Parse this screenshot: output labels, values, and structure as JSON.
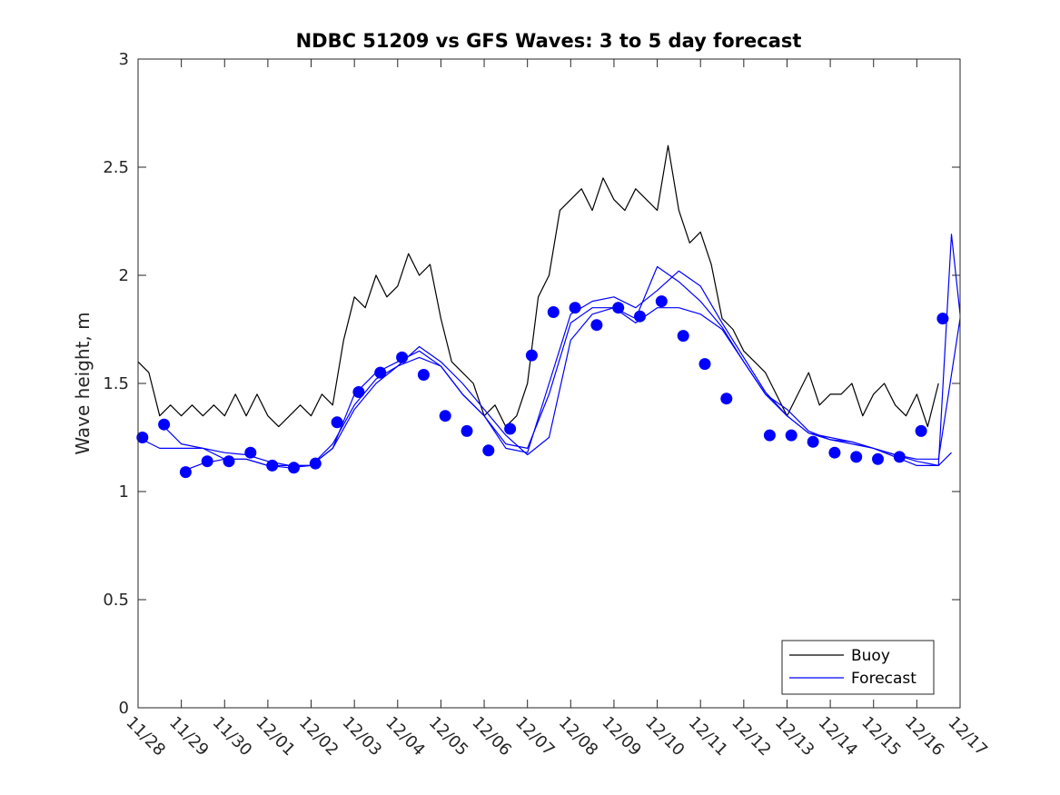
{
  "chart_data": {
    "type": "line",
    "title": "NDBC 51209 vs GFS Waves: 3 to 5 day forecast",
    "xlabel": "",
    "ylabel": "Wave height, m",
    "ylim": [
      0,
      3
    ],
    "xlim": [
      0,
      19
    ],
    "x_tick_labels": [
      "11/28",
      "11/29",
      "11/30",
      "12/01",
      "12/02",
      "12/03",
      "12/04",
      "12/05",
      "12/06",
      "12/07",
      "12/08",
      "12/09",
      "12/10",
      "12/11",
      "12/12",
      "12/13",
      "12/14",
      "12/15",
      "12/16",
      "12/17"
    ],
    "y_tick_labels": [
      "0",
      "0.5",
      "1",
      "1.5",
      "2",
      "2.5",
      "3"
    ],
    "y_ticks": [
      0,
      0.5,
      1,
      1.5,
      2,
      2.5,
      3
    ],
    "legend": {
      "position": "bottom-right",
      "entries": [
        "Buoy",
        "Forecast"
      ]
    },
    "colors": {
      "buoy": "#000000",
      "forecast": "#0000ff",
      "markers": "#0000ff"
    },
    "series": [
      {
        "name": "Buoy",
        "x": [
          0.0,
          0.25,
          0.5,
          0.75,
          1.0,
          1.25,
          1.5,
          1.75,
          2.0,
          2.25,
          2.5,
          2.75,
          3.0,
          3.25,
          3.5,
          3.75,
          4.0,
          4.25,
          4.5,
          4.75,
          5.0,
          5.25,
          5.5,
          5.75,
          6.0,
          6.25,
          6.5,
          6.75,
          7.0,
          7.25,
          7.5,
          7.75,
          8.0,
          8.25,
          8.5,
          8.75,
          9.0,
          9.25,
          9.5,
          9.75,
          10.0,
          10.25,
          10.5,
          10.75,
          11.0,
          11.25,
          11.5,
          11.75,
          12.0,
          12.25,
          12.5,
          12.75,
          13.0,
          13.25,
          13.5,
          13.75,
          14.0,
          14.25,
          14.5,
          14.75,
          15.0,
          15.25,
          15.5,
          15.75,
          16.0,
          16.25,
          16.5,
          16.75,
          17.0,
          17.25,
          17.5,
          17.75,
          18.0,
          18.25,
          18.5
        ],
        "values": [
          1.6,
          1.55,
          1.35,
          1.4,
          1.35,
          1.4,
          1.35,
          1.4,
          1.35,
          1.45,
          1.35,
          1.45,
          1.35,
          1.3,
          1.35,
          1.4,
          1.35,
          1.45,
          1.4,
          1.7,
          1.9,
          1.85,
          2.0,
          1.9,
          1.95,
          2.1,
          2.0,
          2.05,
          1.8,
          1.6,
          1.55,
          1.5,
          1.35,
          1.4,
          1.3,
          1.35,
          1.5,
          1.9,
          2.0,
          2.3,
          2.35,
          2.4,
          2.3,
          2.45,
          2.35,
          2.3,
          2.4,
          2.35,
          2.3,
          2.6,
          2.3,
          2.15,
          2.2,
          2.05,
          1.8,
          1.75,
          1.65,
          1.6,
          1.55,
          1.45,
          1.35,
          1.45,
          1.55,
          1.4,
          1.45,
          1.45,
          1.5,
          1.35,
          1.45,
          1.5,
          1.4,
          1.35,
          1.45,
          1.3,
          1.5
        ]
      },
      {
        "name": "Forecast",
        "x": [
          0.0,
          0.5,
          1.0,
          1.5,
          2.0,
          2.5,
          3.0,
          3.5,
          4.0,
          4.5,
          5.0,
          5.5,
          6.0,
          6.5,
          7.0,
          7.5,
          8.0,
          8.5,
          9.0,
          9.5,
          10.0,
          10.5,
          11.0,
          11.5,
          12.0,
          12.5,
          13.0,
          13.5,
          14.0,
          14.5,
          15.0,
          15.5,
          16.0,
          16.5,
          17.0,
          17.5,
          18.0,
          18.5,
          19.0
        ],
        "values": [
          1.25,
          1.2,
          1.2,
          1.2,
          1.15,
          1.15,
          1.12,
          1.12,
          1.12,
          1.2,
          1.38,
          1.5,
          1.58,
          1.62,
          1.58,
          1.45,
          1.35,
          1.22,
          1.2,
          1.45,
          1.78,
          1.85,
          1.85,
          1.78,
          1.85,
          1.85,
          1.82,
          1.75,
          1.6,
          1.45,
          1.35,
          1.27,
          1.25,
          1.23,
          1.2,
          1.17,
          1.15,
          1.15,
          1.8
        ]
      },
      {
        "name": "Forecast",
        "x": [
          0.6,
          1.0,
          1.5,
          2.0,
          2.5,
          3.0,
          3.5,
          4.0,
          4.5,
          5.0,
          5.5,
          6.0,
          6.5,
          7.0,
          7.5,
          8.0,
          8.5,
          9.0,
          9.5,
          10.0,
          10.5,
          11.0,
          11.5,
          12.0,
          12.5,
          13.0,
          13.5,
          14.0,
          14.5,
          15.0,
          15.5,
          16.0,
          16.5,
          17.0,
          17.5,
          18.0,
          18.5,
          18.8
        ],
        "values": [
          1.3,
          1.22,
          1.2,
          1.18,
          1.17,
          1.14,
          1.12,
          1.12,
          1.2,
          1.45,
          1.55,
          1.6,
          1.65,
          1.58,
          1.45,
          1.35,
          1.2,
          1.18,
          1.5,
          1.82,
          1.88,
          1.9,
          1.85,
          1.93,
          2.02,
          1.95,
          1.78,
          1.62,
          1.46,
          1.35,
          1.27,
          1.24,
          1.22,
          1.2,
          1.17,
          1.14,
          1.12,
          1.18
        ]
      },
      {
        "name": "Forecast",
        "x": [
          1.1,
          1.5,
          2.0,
          2.5,
          3.0,
          3.5,
          4.0,
          4.5,
          5.0,
          5.5,
          6.0,
          6.5,
          7.0,
          7.5,
          8.0,
          8.5,
          9.0,
          9.5,
          10.0,
          10.5,
          11.0,
          11.5,
          12.0,
          12.5,
          13.0,
          13.5,
          14.0,
          14.5,
          15.0,
          15.5,
          16.0,
          16.5,
          17.0,
          17.5,
          18.0,
          18.5,
          18.8,
          19.0
        ],
        "values": [
          1.1,
          1.13,
          1.15,
          1.15,
          1.12,
          1.11,
          1.12,
          1.22,
          1.4,
          1.52,
          1.58,
          1.67,
          1.6,
          1.5,
          1.38,
          1.26,
          1.17,
          1.25,
          1.7,
          1.82,
          1.85,
          1.8,
          2.04,
          1.97,
          1.88,
          1.76,
          1.6,
          1.45,
          1.38,
          1.28,
          1.24,
          1.23,
          1.2,
          1.16,
          1.12,
          1.12,
          2.19,
          1.82
        ]
      }
    ],
    "markers": {
      "name": "Forecast points",
      "x": [
        0.1,
        0.6,
        1.1,
        1.6,
        2.1,
        2.6,
        3.1,
        3.6,
        4.1,
        4.6,
        5.1,
        5.6,
        6.1,
        6.6,
        7.1,
        7.6,
        8.1,
        8.6,
        9.1,
        9.6,
        10.1,
        10.6,
        11.1,
        11.6,
        12.1,
        12.6,
        13.1,
        13.6,
        14.6,
        15.1,
        15.6,
        16.1,
        16.6,
        17.1,
        17.6,
        18.1,
        18.6
      ],
      "values": [
        1.25,
        1.31,
        1.09,
        1.14,
        1.14,
        1.18,
        1.12,
        1.11,
        1.13,
        1.32,
        1.46,
        1.55,
        1.62,
        1.54,
        1.35,
        1.28,
        1.19,
        1.29,
        1.63,
        1.83,
        1.85,
        1.77,
        1.85,
        1.81,
        1.88,
        1.72,
        1.59,
        1.43,
        1.26,
        1.26,
        1.23,
        1.18,
        1.16,
        1.15,
        1.16,
        1.28,
        1.8
      ]
    }
  }
}
